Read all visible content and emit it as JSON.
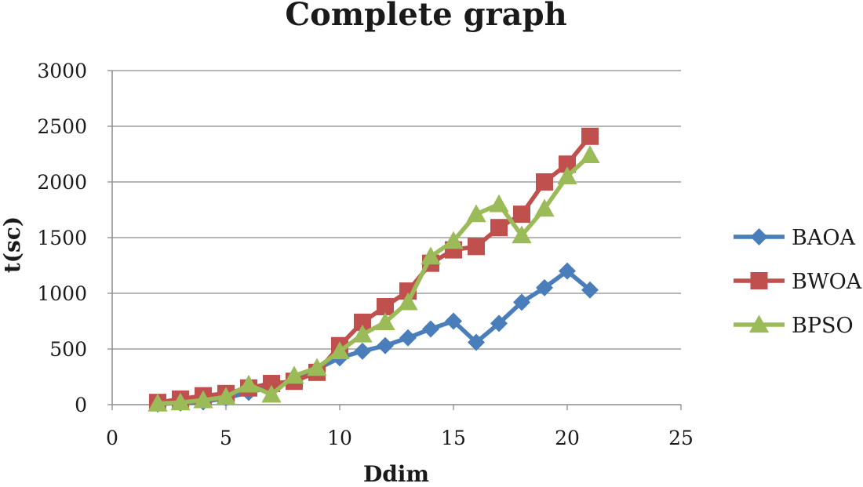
{
  "chart_data": {
    "type": "line",
    "title": "Complete graph",
    "xlabel": "Ddim",
    "ylabel": "t(sc)",
    "xlim": [
      0,
      25
    ],
    "ylim": [
      0,
      3000
    ],
    "xticks": [
      0,
      5,
      10,
      15,
      20,
      25
    ],
    "yticks": [
      0,
      500,
      1000,
      1500,
      2000,
      2500,
      3000
    ],
    "grid": "horizontal",
    "legend_position": "right",
    "series": [
      {
        "name": "BAOA",
        "color": "#4a7ebb",
        "marker": "diamond",
        "x": [
          2,
          3,
          4,
          5,
          6,
          7,
          8,
          9,
          10,
          11,
          12,
          13,
          14,
          15,
          16,
          17,
          18,
          19,
          20,
          21
        ],
        "values": [
          5,
          15,
          25,
          60,
          110,
          160,
          230,
          320,
          420,
          480,
          530,
          600,
          680,
          750,
          560,
          730,
          920,
          1050,
          1200,
          1030
        ]
      },
      {
        "name": "BWOA",
        "color": "#c0504d",
        "marker": "square",
        "x": [
          2,
          3,
          4,
          5,
          6,
          7,
          8,
          9,
          10,
          11,
          12,
          13,
          14,
          15,
          16,
          17,
          18,
          19,
          20,
          21
        ],
        "values": [
          20,
          50,
          80,
          100,
          150,
          190,
          210,
          290,
          530,
          740,
          880,
          1020,
          1270,
          1390,
          1420,
          1590,
          1710,
          2000,
          2160,
          2410
        ]
      },
      {
        "name": "BPSO",
        "color": "#9bbb59",
        "marker": "triangle",
        "x": [
          2,
          3,
          4,
          5,
          6,
          7,
          8,
          9,
          10,
          11,
          12,
          13,
          14,
          15,
          16,
          17,
          18,
          19,
          20,
          21
        ],
        "values": [
          10,
          20,
          40,
          70,
          180,
          90,
          260,
          330,
          480,
          630,
          740,
          920,
          1330,
          1470,
          1710,
          1800,
          1520,
          1760,
          2050,
          2240
        ]
      }
    ]
  }
}
